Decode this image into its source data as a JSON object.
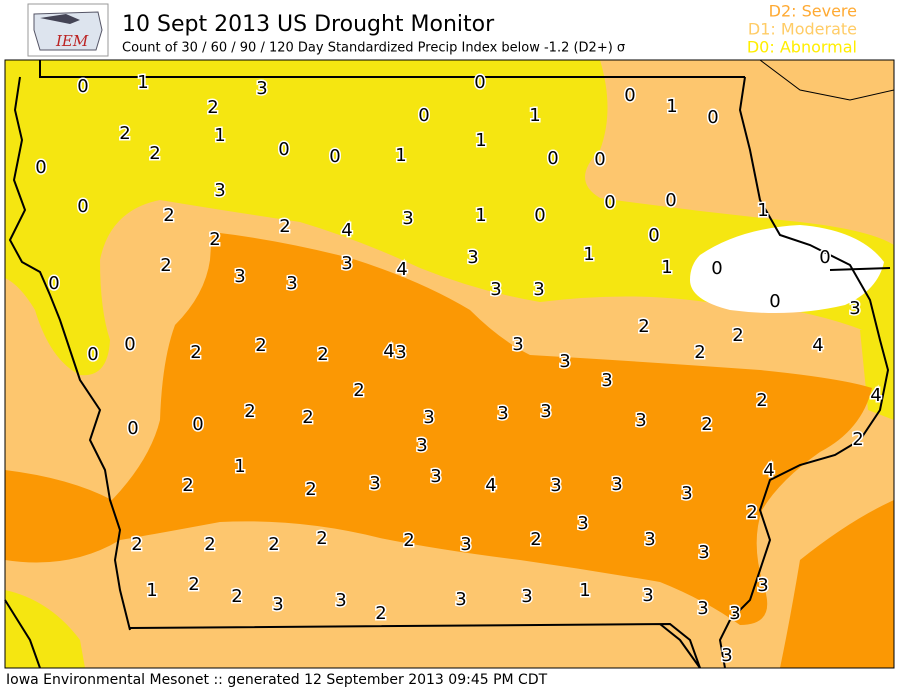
{
  "header": {
    "title": "10 Sept 2013 US Drought Monitor",
    "subtitle": "Count of 30 / 60 / 90 / 120 Day Standardized Precip Index below -1.2 (D2+) σ",
    "logo": "IEM"
  },
  "legend": [
    {
      "label": "D2: Severe",
      "color": "#ffaa33"
    },
    {
      "label": "D1: Moderate",
      "color": "#ffcc66"
    },
    {
      "label": "D0: Abnormal",
      "color": "#ffee00"
    }
  ],
  "footer": "Iowa Environmental Mesonet :: generated 12 September 2013 09:45 PM CDT",
  "labels": [
    0,
    1,
    3,
    0,
    2,
    0,
    1,
    0,
    0,
    1,
    2,
    1,
    2,
    0,
    0,
    1,
    1,
    0,
    0,
    0,
    3,
    0,
    2,
    2,
    4,
    3,
    1,
    0,
    0,
    0,
    1,
    2,
    0,
    2,
    3,
    3,
    3,
    4,
    3,
    1,
    1,
    0,
    0,
    0,
    3,
    3,
    0,
    3,
    2,
    2,
    0,
    0,
    2,
    2,
    2,
    4,
    3,
    3,
    3,
    2,
    4,
    3,
    2,
    2,
    4,
    2,
    2,
    3,
    3,
    3,
    3,
    2,
    0,
    0,
    3,
    2,
    1,
    3,
    4,
    2,
    2,
    3,
    4,
    3,
    3,
    3,
    2,
    3,
    2,
    2,
    2,
    2,
    2,
    3,
    2,
    3,
    3,
    1,
    2,
    2,
    3,
    3,
    2,
    3,
    3,
    1,
    3,
    3,
    3,
    3,
    3
  ]
}
